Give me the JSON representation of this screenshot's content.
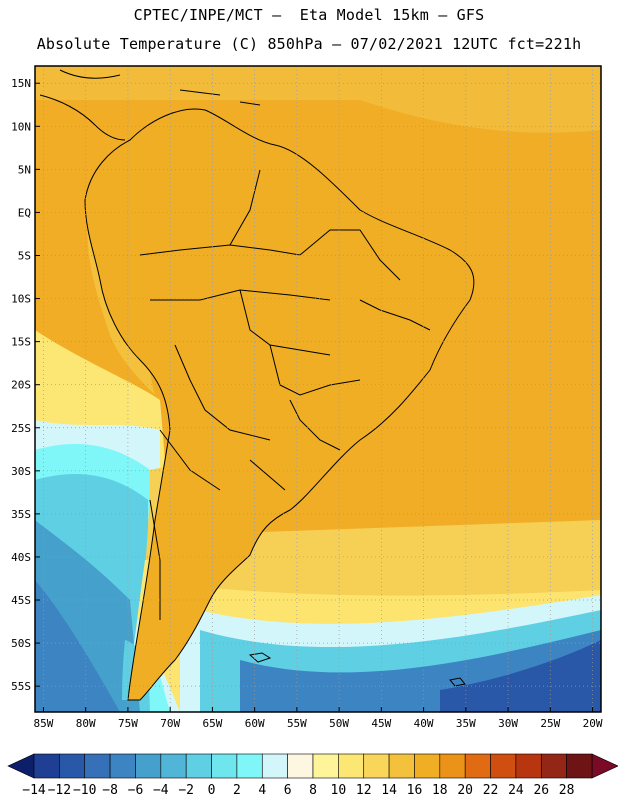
{
  "header": {
    "line1": "CPTEC/INPE/MCT –  Eta Model 15km – GFS",
    "line2": "Absolute Temperature (C) 850hPa – 07/02/2021 12UTC fct=221h"
  },
  "map": {
    "lat_labels": [
      "15N",
      "10N",
      "5N",
      "EQ",
      "5S",
      "10S",
      "15S",
      "20S",
      "25S",
      "30S",
      "35S",
      "40S",
      "45S",
      "50S",
      "55S"
    ],
    "lon_labels": [
      "85W",
      "80W",
      "75W",
      "70W",
      "65W",
      "60W",
      "55W",
      "50W",
      "45W",
      "40W",
      "35W",
      "30W",
      "25W",
      "20W"
    ],
    "lat_range": [
      -58,
      17
    ],
    "lon_range": [
      -86,
      -19
    ]
  },
  "colorbar": {
    "units": "C",
    "labels": [
      "-14",
      "-12",
      "-10",
      "-8",
      "-6",
      "-4",
      "-2",
      "0",
      "2",
      "4",
      "6",
      "8",
      "10",
      "12",
      "14",
      "16",
      "18",
      "20",
      "22",
      "24",
      "26",
      "28"
    ],
    "colors": [
      "#1f3f94",
      "#2a58a8",
      "#3570b8",
      "#3c85c2",
      "#45a0cc",
      "#50b5d6",
      "#5fd0e4",
      "#6fe6ee",
      "#7ff7f9",
      "#d3f6fb",
      "#fdf6e0",
      "#fef59a",
      "#fde774",
      "#f9d65a",
      "#f3c13c",
      "#f0ae24",
      "#eb9318",
      "#e06b12",
      "#cf4e10",
      "#b8360f",
      "#932616",
      "#6e1414"
    ],
    "under_color": "#0d1f6b",
    "over_color": "#7a0a25"
  }
}
